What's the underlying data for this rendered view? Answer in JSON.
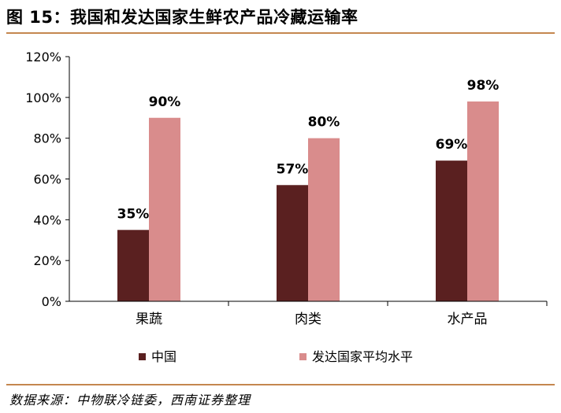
{
  "title": "图 15：我国和发达国家生鲜农产品冷藏运输率",
  "source": "数据来源：中物联冷链委，西南证券整理",
  "chart_data": {
    "type": "bar",
    "categories": [
      "果蔬",
      "肉类",
      "水产品"
    ],
    "series": [
      {
        "name": "中国",
        "values": [
          35,
          57,
          69
        ],
        "color": "#5a2020"
      },
      {
        "name": "发达国家平均水平",
        "values": [
          90,
          80,
          98
        ],
        "color": "#d98c8c"
      }
    ],
    "data_labels": {
      "中国": [
        "35%",
        "57%",
        "69%"
      ],
      "发达国家平均水平": [
        "90%",
        "80%",
        "98%"
      ]
    },
    "yticks": [
      "0%",
      "20%",
      "40%",
      "60%",
      "80%",
      "100%",
      "120%"
    ],
    "ylim": [
      0,
      120
    ],
    "legend_position": "bottom",
    "grid": false
  }
}
